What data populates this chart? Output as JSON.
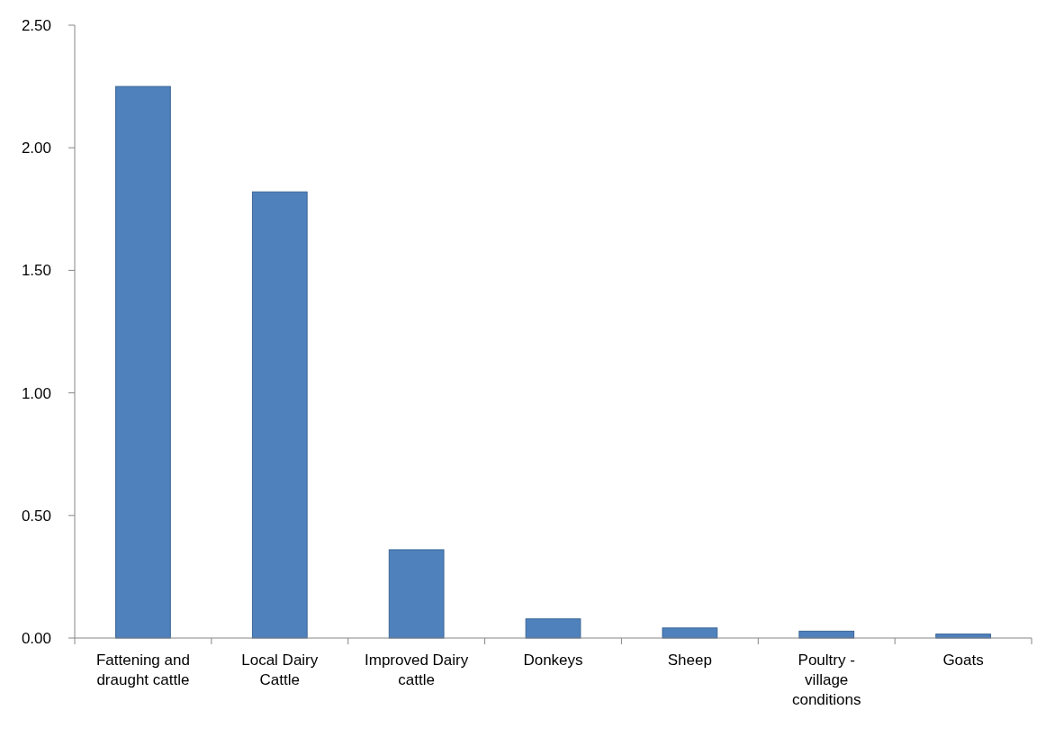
{
  "chart_data": {
    "type": "bar",
    "categories": [
      "Fattening and draught cattle",
      "Local Dairy Cattle",
      "Improved Dairy cattle",
      "Donkeys",
      "Sheep",
      "Poultry - village conditions",
      "Goats"
    ],
    "values": [
      2.25,
      1.82,
      0.36,
      0.078,
      0.041,
      0.028,
      0.016
    ],
    "color": "#4f81bd",
    "ylim": [
      0,
      2.5
    ],
    "yticks": [
      {
        "value": 0,
        "label": "0.00"
      },
      {
        "value": 0.5,
        "label": "0.50"
      },
      {
        "value": 1,
        "label": "1.00"
      },
      {
        "value": 1.5,
        "label": "1.50"
      },
      {
        "value": 2,
        "label": "2.00"
      },
      {
        "value": 2.5,
        "label": "2.50"
      }
    ],
    "grid": false
  }
}
